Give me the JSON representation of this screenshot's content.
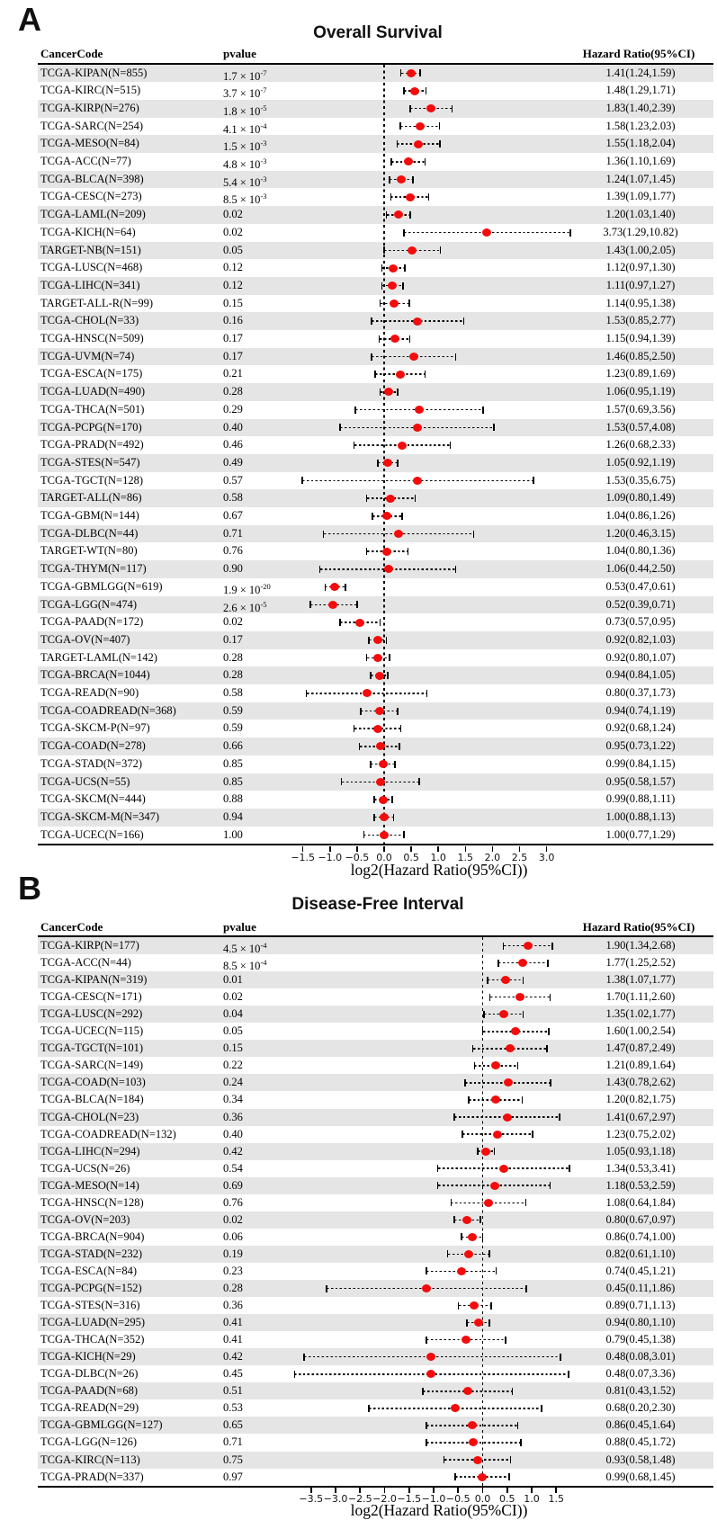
{
  "figure": {
    "background": "#ffffff"
  },
  "colors": {
    "dot_red": "#f40b0b",
    "row_band_gray": "#e5e5e5",
    "line_black": "#000000"
  },
  "chart_data": [
    {
      "type": "scatter",
      "subtype": "forest-plot",
      "panel_label": "A",
      "title": "Overall Survival",
      "columns": [
        "CancerCode",
        "pvalue",
        "Hazard Ratio(95%CI)"
      ],
      "xlabel": "log2(Hazard Ratio(95%CI))",
      "x_scale": "log2(hazard ratio)",
      "xticks": [
        -1.5,
        -1.0,
        -0.5,
        0.0,
        0.5,
        1.0,
        1.5,
        2.0,
        2.5,
        3.0
      ],
      "xlim": [
        -2.1,
        3.45
      ],
      "grid": false,
      "reference_line_at": 0,
      "rows": [
        {
          "code": "TCGA-KIPAN(N=855)",
          "pvalue": "1.7 × 10^-7",
          "hr": 1.41,
          "ci_low": 1.24,
          "ci_high": 1.59,
          "hr_text": "1.41(1.24,1.59)"
        },
        {
          "code": "TCGA-KIRC(N=515)",
          "pvalue": "3.7 × 10^-7",
          "hr": 1.48,
          "ci_low": 1.29,
          "ci_high": 1.71,
          "hr_text": "1.48(1.29,1.71)"
        },
        {
          "code": "TCGA-KIRP(N=276)",
          "pvalue": "1.8 × 10^-5",
          "hr": 1.83,
          "ci_low": 1.4,
          "ci_high": 2.39,
          "hr_text": "1.83(1.40,2.39)"
        },
        {
          "code": "TCGA-SARC(N=254)",
          "pvalue": "4.1 × 10^-4",
          "hr": 1.58,
          "ci_low": 1.23,
          "ci_high": 2.03,
          "hr_text": "1.58(1.23,2.03)"
        },
        {
          "code": "TCGA-MESO(N=84)",
          "pvalue": "1.5 × 10^-3",
          "hr": 1.55,
          "ci_low": 1.18,
          "ci_high": 2.04,
          "hr_text": "1.55(1.18,2.04)"
        },
        {
          "code": "TCGA-ACC(N=77)",
          "pvalue": "4.8 × 10^-3",
          "hr": 1.36,
          "ci_low": 1.1,
          "ci_high": 1.69,
          "hr_text": "1.36(1.10,1.69)"
        },
        {
          "code": "TCGA-BLCA(N=398)",
          "pvalue": "5.4 × 10^-3",
          "hr": 1.24,
          "ci_low": 1.07,
          "ci_high": 1.45,
          "hr_text": "1.24(1.07,1.45)"
        },
        {
          "code": "TCGA-CESC(N=273)",
          "pvalue": "8.5 × 10^-3",
          "hr": 1.39,
          "ci_low": 1.09,
          "ci_high": 1.77,
          "hr_text": "1.39(1.09,1.77)"
        },
        {
          "code": "TCGA-LAML(N=209)",
          "pvalue": "0.02",
          "hr": 1.2,
          "ci_low": 1.03,
          "ci_high": 1.4,
          "hr_text": "1.20(1.03,1.40)"
        },
        {
          "code": "TCGA-KICH(N=64)",
          "pvalue": "0.02",
          "hr": 3.73,
          "ci_low": 1.29,
          "ci_high": 10.82,
          "hr_text": "3.73(1.29,10.82)"
        },
        {
          "code": "TARGET-NB(N=151)",
          "pvalue": "0.05",
          "hr": 1.43,
          "ci_low": 1.0,
          "ci_high": 2.05,
          "hr_text": "1.43(1.00,2.05)"
        },
        {
          "code": "TCGA-LUSC(N=468)",
          "pvalue": "0.12",
          "hr": 1.12,
          "ci_low": 0.97,
          "ci_high": 1.3,
          "hr_text": "1.12(0.97,1.30)"
        },
        {
          "code": "TCGA-LIHC(N=341)",
          "pvalue": "0.12",
          "hr": 1.11,
          "ci_low": 0.97,
          "ci_high": 1.27,
          "hr_text": "1.11(0.97,1.27)"
        },
        {
          "code": "TARGET-ALL-R(N=99)",
          "pvalue": "0.15",
          "hr": 1.14,
          "ci_low": 0.95,
          "ci_high": 1.38,
          "hr_text": "1.14(0.95,1.38)"
        },
        {
          "code": "TCGA-CHOL(N=33)",
          "pvalue": "0.16",
          "hr": 1.53,
          "ci_low": 0.85,
          "ci_high": 2.77,
          "hr_text": "1.53(0.85,2.77)"
        },
        {
          "code": "TCGA-HNSC(N=509)",
          "pvalue": "0.17",
          "hr": 1.15,
          "ci_low": 0.94,
          "ci_high": 1.39,
          "hr_text": "1.15(0.94,1.39)"
        },
        {
          "code": "TCGA-UVM(N=74)",
          "pvalue": "0.17",
          "hr": 1.46,
          "ci_low": 0.85,
          "ci_high": 2.5,
          "hr_text": "1.46(0.85,2.50)"
        },
        {
          "code": "TCGA-ESCA(N=175)",
          "pvalue": "0.21",
          "hr": 1.23,
          "ci_low": 0.89,
          "ci_high": 1.69,
          "hr_text": "1.23(0.89,1.69)"
        },
        {
          "code": "TCGA-LUAD(N=490)",
          "pvalue": "0.28",
          "hr": 1.06,
          "ci_low": 0.95,
          "ci_high": 1.19,
          "hr_text": "1.06(0.95,1.19)"
        },
        {
          "code": "TCGA-THCA(N=501)",
          "pvalue": "0.29",
          "hr": 1.57,
          "ci_low": 0.69,
          "ci_high": 3.56,
          "hr_text": "1.57(0.69,3.56)"
        },
        {
          "code": "TCGA-PCPG(N=170)",
          "pvalue": "0.40",
          "hr": 1.53,
          "ci_low": 0.57,
          "ci_high": 4.08,
          "hr_text": "1.53(0.57,4.08)"
        },
        {
          "code": "TCGA-PRAD(N=492)",
          "pvalue": "0.46",
          "hr": 1.26,
          "ci_low": 0.68,
          "ci_high": 2.33,
          "hr_text": "1.26(0.68,2.33)"
        },
        {
          "code": "TCGA-STES(N=547)",
          "pvalue": "0.49",
          "hr": 1.05,
          "ci_low": 0.92,
          "ci_high": 1.19,
          "hr_text": "1.05(0.92,1.19)"
        },
        {
          "code": "TCGA-TGCT(N=128)",
          "pvalue": "0.57",
          "hr": 1.53,
          "ci_low": 0.35,
          "ci_high": 6.75,
          "hr_text": "1.53(0.35,6.75)"
        },
        {
          "code": "TARGET-ALL(N=86)",
          "pvalue": "0.58",
          "hr": 1.09,
          "ci_low": 0.8,
          "ci_high": 1.49,
          "hr_text": "1.09(0.80,1.49)"
        },
        {
          "code": "TCGA-GBM(N=144)",
          "pvalue": "0.67",
          "hr": 1.04,
          "ci_low": 0.86,
          "ci_high": 1.26,
          "hr_text": "1.04(0.86,1.26)"
        },
        {
          "code": "TCGA-DLBC(N=44)",
          "pvalue": "0.71",
          "hr": 1.2,
          "ci_low": 0.46,
          "ci_high": 3.15,
          "hr_text": "1.20(0.46,3.15)"
        },
        {
          "code": "TARGET-WT(N=80)",
          "pvalue": "0.76",
          "hr": 1.04,
          "ci_low": 0.8,
          "ci_high": 1.36,
          "hr_text": "1.04(0.80,1.36)"
        },
        {
          "code": "TCGA-THYM(N=117)",
          "pvalue": "0.90",
          "hr": 1.06,
          "ci_low": 0.44,
          "ci_high": 2.5,
          "hr_text": "1.06(0.44,2.50)"
        },
        {
          "code": "TCGA-GBMLGG(N=619)",
          "pvalue": "1.9 × 10^-20",
          "hr": 0.53,
          "ci_low": 0.47,
          "ci_high": 0.61,
          "hr_text": "0.53(0.47,0.61)"
        },
        {
          "code": "TCGA-LGG(N=474)",
          "pvalue": "2.6 × 10^-5",
          "hr": 0.52,
          "ci_low": 0.39,
          "ci_high": 0.71,
          "hr_text": "0.52(0.39,0.71)"
        },
        {
          "code": "TCGA-PAAD(N=172)",
          "pvalue": "0.02",
          "hr": 0.73,
          "ci_low": 0.57,
          "ci_high": 0.95,
          "hr_text": "0.73(0.57,0.95)"
        },
        {
          "code": "TCGA-OV(N=407)",
          "pvalue": "0.17",
          "hr": 0.92,
          "ci_low": 0.82,
          "ci_high": 1.03,
          "hr_text": "0.92(0.82,1.03)"
        },
        {
          "code": "TARGET-LAML(N=142)",
          "pvalue": "0.28",
          "hr": 0.92,
          "ci_low": 0.8,
          "ci_high": 1.07,
          "hr_text": "0.92(0.80,1.07)"
        },
        {
          "code": "TCGA-BRCA(N=1044)",
          "pvalue": "0.28",
          "hr": 0.94,
          "ci_low": 0.84,
          "ci_high": 1.05,
          "hr_text": "0.94(0.84,1.05)"
        },
        {
          "code": "TCGA-READ(N=90)",
          "pvalue": "0.58",
          "hr": 0.8,
          "ci_low": 0.37,
          "ci_high": 1.73,
          "hr_text": "0.80(0.37,1.73)"
        },
        {
          "code": "TCGA-COADREAD(N=368)",
          "pvalue": "0.59",
          "hr": 0.94,
          "ci_low": 0.74,
          "ci_high": 1.19,
          "hr_text": "0.94(0.74,1.19)"
        },
        {
          "code": "TCGA-SKCM-P(N=97)",
          "pvalue": "0.59",
          "hr": 0.92,
          "ci_low": 0.68,
          "ci_high": 1.24,
          "hr_text": "0.92(0.68,1.24)"
        },
        {
          "code": "TCGA-COAD(N=278)",
          "pvalue": "0.66",
          "hr": 0.95,
          "ci_low": 0.73,
          "ci_high": 1.22,
          "hr_text": "0.95(0.73,1.22)"
        },
        {
          "code": "TCGA-STAD(N=372)",
          "pvalue": "0.85",
          "hr": 0.99,
          "ci_low": 0.84,
          "ci_high": 1.15,
          "hr_text": "0.99(0.84,1.15)"
        },
        {
          "code": "TCGA-UCS(N=55)",
          "pvalue": "0.85",
          "hr": 0.95,
          "ci_low": 0.58,
          "ci_high": 1.57,
          "hr_text": "0.95(0.58,1.57)"
        },
        {
          "code": "TCGA-SKCM(N=444)",
          "pvalue": "0.88",
          "hr": 0.99,
          "ci_low": 0.88,
          "ci_high": 1.11,
          "hr_text": "0.99(0.88,1.11)"
        },
        {
          "code": "TCGA-SKCM-M(N=347)",
          "pvalue": "0.94",
          "hr": 1.0,
          "ci_low": 0.88,
          "ci_high": 1.13,
          "hr_text": "1.00(0.88,1.13)"
        },
        {
          "code": "TCGA-UCEC(N=166)",
          "pvalue": "1.00",
          "hr": 1.0,
          "ci_low": 0.77,
          "ci_high": 1.29,
          "hr_text": "1.00(0.77,1.29)"
        }
      ]
    },
    {
      "type": "scatter",
      "subtype": "forest-plot",
      "panel_label": "B",
      "title": "Disease-Free Interval",
      "columns": [
        "CancerCode",
        "pvalue",
        "Hazard Ratio(95%CI)"
      ],
      "xlabel": "log2(Hazard Ratio(95%CI))",
      "x_scale": "log2(hazard ratio)",
      "xticks": [
        -3.5,
        -3.0,
        -2.5,
        -2.0,
        -1.5,
        -1.0,
        -0.5,
        0.0,
        0.5,
        1.0,
        1.5
      ],
      "xlim": [
        -4.05,
        1.9
      ],
      "grid": false,
      "reference_line_at": 0,
      "rows": [
        {
          "code": "TCGA-KIRP(N=177)",
          "pvalue": "4.5 × 10^-4",
          "hr": 1.9,
          "ci_low": 1.34,
          "ci_high": 2.68,
          "hr_text": "1.90(1.34,2.68)"
        },
        {
          "code": "TCGA-ACC(N=44)",
          "pvalue": "8.5 × 10^-4",
          "hr": 1.77,
          "ci_low": 1.25,
          "ci_high": 2.52,
          "hr_text": "1.77(1.25,2.52)"
        },
        {
          "code": "TCGA-KIPAN(N=319)",
          "pvalue": "0.01",
          "hr": 1.38,
          "ci_low": 1.07,
          "ci_high": 1.77,
          "hr_text": "1.38(1.07,1.77)"
        },
        {
          "code": "TCGA-CESC(N=171)",
          "pvalue": "0.02",
          "hr": 1.7,
          "ci_low": 1.11,
          "ci_high": 2.6,
          "hr_text": "1.70(1.11,2.60)"
        },
        {
          "code": "TCGA-LUSC(N=292)",
          "pvalue": "0.04",
          "hr": 1.35,
          "ci_low": 1.02,
          "ci_high": 1.77,
          "hr_text": "1.35(1.02,1.77)"
        },
        {
          "code": "TCGA-UCEC(N=115)",
          "pvalue": "0.05",
          "hr": 1.6,
          "ci_low": 1.0,
          "ci_high": 2.54,
          "hr_text": "1.60(1.00,2.54)"
        },
        {
          "code": "TCGA-TGCT(N=101)",
          "pvalue": "0.15",
          "hr": 1.47,
          "ci_low": 0.87,
          "ci_high": 2.49,
          "hr_text": "1.47(0.87,2.49)"
        },
        {
          "code": "TCGA-SARC(N=149)",
          "pvalue": "0.22",
          "hr": 1.21,
          "ci_low": 0.89,
          "ci_high": 1.64,
          "hr_text": "1.21(0.89,1.64)"
        },
        {
          "code": "TCGA-COAD(N=103)",
          "pvalue": "0.24",
          "hr": 1.43,
          "ci_low": 0.78,
          "ci_high": 2.62,
          "hr_text": "1.43(0.78,2.62)"
        },
        {
          "code": "TCGA-BLCA(N=184)",
          "pvalue": "0.34",
          "hr": 1.2,
          "ci_low": 0.82,
          "ci_high": 1.75,
          "hr_text": "1.20(0.82,1.75)"
        },
        {
          "code": "TCGA-CHOL(N=23)",
          "pvalue": "0.36",
          "hr": 1.41,
          "ci_low": 0.67,
          "ci_high": 2.97,
          "hr_text": "1.41(0.67,2.97)"
        },
        {
          "code": "TCGA-COADREAD(N=132)",
          "pvalue": "0.40",
          "hr": 1.23,
          "ci_low": 0.75,
          "ci_high": 2.02,
          "hr_text": "1.23(0.75,2.02)"
        },
        {
          "code": "TCGA-LIHC(N=294)",
          "pvalue": "0.42",
          "hr": 1.05,
          "ci_low": 0.93,
          "ci_high": 1.18,
          "hr_text": "1.05(0.93,1.18)"
        },
        {
          "code": "TCGA-UCS(N=26)",
          "pvalue": "0.54",
          "hr": 1.34,
          "ci_low": 0.53,
          "ci_high": 3.41,
          "hr_text": "1.34(0.53,3.41)"
        },
        {
          "code": "TCGA-MESO(N=14)",
          "pvalue": "0.69",
          "hr": 1.18,
          "ci_low": 0.53,
          "ci_high": 2.59,
          "hr_text": "1.18(0.53,2.59)"
        },
        {
          "code": "TCGA-HNSC(N=128)",
          "pvalue": "0.76",
          "hr": 1.08,
          "ci_low": 0.64,
          "ci_high": 1.84,
          "hr_text": "1.08(0.64,1.84)"
        },
        {
          "code": "TCGA-OV(N=203)",
          "pvalue": "0.02",
          "hr": 0.8,
          "ci_low": 0.67,
          "ci_high": 0.97,
          "hr_text": "0.80(0.67,0.97)"
        },
        {
          "code": "TCGA-BRCA(N=904)",
          "pvalue": "0.06",
          "hr": 0.86,
          "ci_low": 0.74,
          "ci_high": 1.0,
          "hr_text": "0.86(0.74,1.00)"
        },
        {
          "code": "TCGA-STAD(N=232)",
          "pvalue": "0.19",
          "hr": 0.82,
          "ci_low": 0.61,
          "ci_high": 1.1,
          "hr_text": "0.82(0.61,1.10)"
        },
        {
          "code": "TCGA-ESCA(N=84)",
          "pvalue": "0.23",
          "hr": 0.74,
          "ci_low": 0.45,
          "ci_high": 1.21,
          "hr_text": "0.74(0.45,1.21)"
        },
        {
          "code": "TCGA-PCPG(N=152)",
          "pvalue": "0.28",
          "hr": 0.45,
          "ci_low": 0.11,
          "ci_high": 1.86,
          "hr_text": "0.45(0.11,1.86)"
        },
        {
          "code": "TCGA-STES(N=316)",
          "pvalue": "0.36",
          "hr": 0.89,
          "ci_low": 0.71,
          "ci_high": 1.13,
          "hr_text": "0.89(0.71,1.13)"
        },
        {
          "code": "TCGA-LUAD(N=295)",
          "pvalue": "0.41",
          "hr": 0.94,
          "ci_low": 0.8,
          "ci_high": 1.1,
          "hr_text": "0.94(0.80,1.10)"
        },
        {
          "code": "TCGA-THCA(N=352)",
          "pvalue": "0.41",
          "hr": 0.79,
          "ci_low": 0.45,
          "ci_high": 1.38,
          "hr_text": "0.79(0.45,1.38)"
        },
        {
          "code": "TCGA-KICH(N=29)",
          "pvalue": "0.42",
          "hr": 0.48,
          "ci_low": 0.08,
          "ci_high": 3.01,
          "hr_text": "0.48(0.08,3.01)"
        },
        {
          "code": "TCGA-DLBC(N=26)",
          "pvalue": "0.45",
          "hr": 0.48,
          "ci_low": 0.07,
          "ci_high": 3.36,
          "hr_text": "0.48(0.07,3.36)"
        },
        {
          "code": "TCGA-PAAD(N=68)",
          "pvalue": "0.51",
          "hr": 0.81,
          "ci_low": 0.43,
          "ci_high": 1.52,
          "hr_text": "0.81(0.43,1.52)"
        },
        {
          "code": "TCGA-READ(N=29)",
          "pvalue": "0.53",
          "hr": 0.68,
          "ci_low": 0.2,
          "ci_high": 2.3,
          "hr_text": "0.68(0.20,2.30)"
        },
        {
          "code": "TCGA-GBMLGG(N=127)",
          "pvalue": "0.65",
          "hr": 0.86,
          "ci_low": 0.45,
          "ci_high": 1.64,
          "hr_text": "0.86(0.45,1.64)"
        },
        {
          "code": "TCGA-LGG(N=126)",
          "pvalue": "0.71",
          "hr": 0.88,
          "ci_low": 0.45,
          "ci_high": 1.72,
          "hr_text": "0.88(0.45,1.72)"
        },
        {
          "code": "TCGA-KIRC(N=113)",
          "pvalue": "0.75",
          "hr": 0.93,
          "ci_low": 0.58,
          "ci_high": 1.48,
          "hr_text": "0.93(0.58,1.48)"
        },
        {
          "code": "TCGA-PRAD(N=337)",
          "pvalue": "0.97",
          "hr": 0.99,
          "ci_low": 0.68,
          "ci_high": 1.45,
          "hr_text": "0.99(0.68,1.45)"
        }
      ]
    }
  ]
}
